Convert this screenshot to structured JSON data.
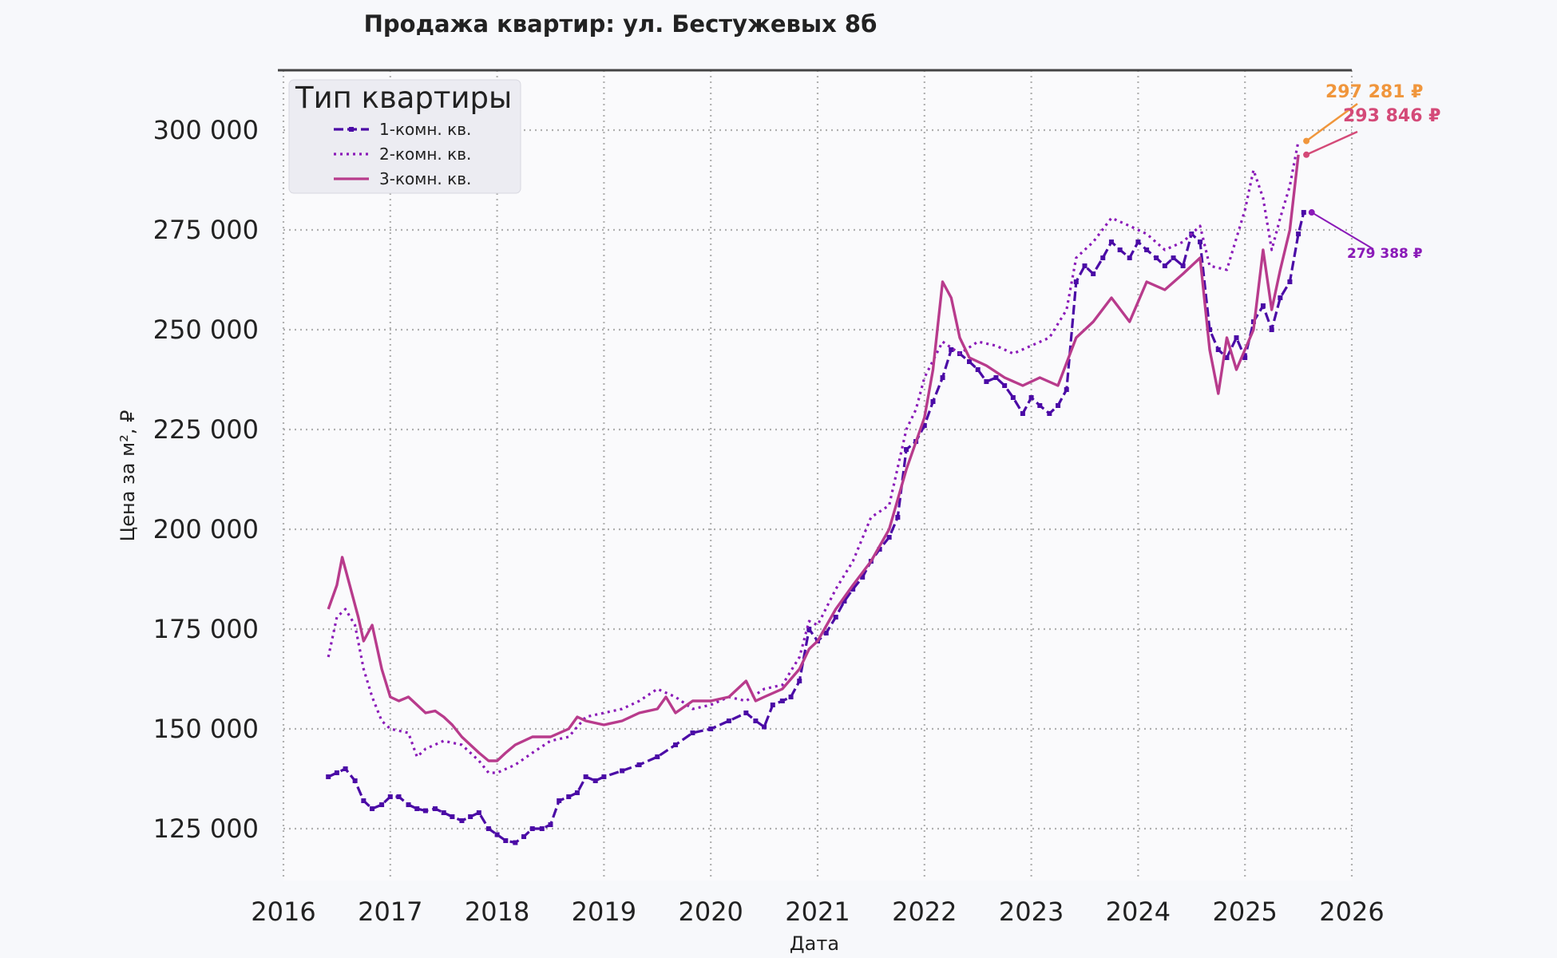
{
  "chart_data": {
    "type": "line",
    "title": "Продажа квартир: ул. Бестужевых 8б",
    "xlabel": "Дата",
    "ylabel": "Цена за м², ₽",
    "xlim": [
      2016,
      2026
    ],
    "ylim": [
      112000,
      315000
    ],
    "xticks": [
      2016,
      2017,
      2018,
      2019,
      2020,
      2021,
      2022,
      2023,
      2024,
      2025,
      2026
    ],
    "xtick_labels": [
      "2016",
      "2017",
      "2018",
      "2019",
      "2020",
      "2021",
      "2022",
      "2023",
      "2024",
      "2025",
      "2026"
    ],
    "yticks": [
      125000,
      150000,
      175000,
      200000,
      225000,
      250000,
      275000,
      300000
    ],
    "ytick_labels": [
      "125 000",
      "150 000",
      "175 000",
      "200 000",
      "225 000",
      "250 000",
      "275 000",
      "300 000"
    ],
    "grid": true,
    "legend": {
      "title": "Тип квартиры",
      "placement": "top-left"
    },
    "series": [
      {
        "name": "1-комн. кв.",
        "color": "#4b0aa6",
        "style": "dashed-marker",
        "points": [
          [
            2016.42,
            138000
          ],
          [
            2016.5,
            139000
          ],
          [
            2016.58,
            140000
          ],
          [
            2016.67,
            137000
          ],
          [
            2016.75,
            132000
          ],
          [
            2016.83,
            130000
          ],
          [
            2016.92,
            131000
          ],
          [
            2017.0,
            133000
          ],
          [
            2017.08,
            133000
          ],
          [
            2017.17,
            131000
          ],
          [
            2017.25,
            130000
          ],
          [
            2017.33,
            129500
          ],
          [
            2017.42,
            130000
          ],
          [
            2017.5,
            129000
          ],
          [
            2017.58,
            128000
          ],
          [
            2017.67,
            127000
          ],
          [
            2017.75,
            128000
          ],
          [
            2017.83,
            129000
          ],
          [
            2017.92,
            125000
          ],
          [
            2018.0,
            123500
          ],
          [
            2018.08,
            122000
          ],
          [
            2018.17,
            121500
          ],
          [
            2018.25,
            123000
          ],
          [
            2018.33,
            125000
          ],
          [
            2018.42,
            125000
          ],
          [
            2018.5,
            126000
          ],
          [
            2018.58,
            132000
          ],
          [
            2018.67,
            133000
          ],
          [
            2018.75,
            134000
          ],
          [
            2018.83,
            138000
          ],
          [
            2018.92,
            137000
          ],
          [
            2019.0,
            138000
          ],
          [
            2019.17,
            139500
          ],
          [
            2019.33,
            141000
          ],
          [
            2019.5,
            143000
          ],
          [
            2019.67,
            146000
          ],
          [
            2019.83,
            149000
          ],
          [
            2020.0,
            150000
          ],
          [
            2020.17,
            152000
          ],
          [
            2020.33,
            154000
          ],
          [
            2020.42,
            152000
          ],
          [
            2020.5,
            150500
          ],
          [
            2020.58,
            156000
          ],
          [
            2020.67,
            157000
          ],
          [
            2020.75,
            158000
          ],
          [
            2020.83,
            162000
          ],
          [
            2020.92,
            175000
          ],
          [
            2021.0,
            172000
          ],
          [
            2021.08,
            174000
          ],
          [
            2021.17,
            178000
          ],
          [
            2021.25,
            182000
          ],
          [
            2021.33,
            185000
          ],
          [
            2021.42,
            188000
          ],
          [
            2021.5,
            192000
          ],
          [
            2021.58,
            195000
          ],
          [
            2021.67,
            198000
          ],
          [
            2021.75,
            203000
          ],
          [
            2021.83,
            220000
          ],
          [
            2021.92,
            222000
          ],
          [
            2022.0,
            226000
          ],
          [
            2022.08,
            232000
          ],
          [
            2022.17,
            238000
          ],
          [
            2022.25,
            245000
          ],
          [
            2022.33,
            244000
          ],
          [
            2022.42,
            242000
          ],
          [
            2022.5,
            240000
          ],
          [
            2022.58,
            237000
          ],
          [
            2022.67,
            238000
          ],
          [
            2022.75,
            236000
          ],
          [
            2022.83,
            233000
          ],
          [
            2022.92,
            229000
          ],
          [
            2023.0,
            233000
          ],
          [
            2023.08,
            231000
          ],
          [
            2023.17,
            229000
          ],
          [
            2023.25,
            231000
          ],
          [
            2023.33,
            235000
          ],
          [
            2023.42,
            262000
          ],
          [
            2023.5,
            266000
          ],
          [
            2023.58,
            264000
          ],
          [
            2023.67,
            268000
          ],
          [
            2023.75,
            272000
          ],
          [
            2023.83,
            270000
          ],
          [
            2023.92,
            268000
          ],
          [
            2024.0,
            272000
          ],
          [
            2024.08,
            270000
          ],
          [
            2024.17,
            268000
          ],
          [
            2024.25,
            266000
          ],
          [
            2024.33,
            268000
          ],
          [
            2024.42,
            266000
          ],
          [
            2024.5,
            274000
          ],
          [
            2024.58,
            272000
          ],
          [
            2024.67,
            250000
          ],
          [
            2024.75,
            245000
          ],
          [
            2024.83,
            243000
          ],
          [
            2024.92,
            248000
          ],
          [
            2025.0,
            243000
          ],
          [
            2025.08,
            252000
          ],
          [
            2025.17,
            256000
          ],
          [
            2025.25,
            250000
          ],
          [
            2025.33,
            258000
          ],
          [
            2025.42,
            262000
          ],
          [
            2025.5,
            274000
          ],
          [
            2025.55,
            279388
          ]
        ]
      },
      {
        "name": "2-комн. кв.",
        "color": "#8a1ab8",
        "style": "dotted",
        "points": [
          [
            2016.42,
            168000
          ],
          [
            2016.5,
            178000
          ],
          [
            2016.58,
            180000
          ],
          [
            2016.67,
            176000
          ],
          [
            2016.75,
            165000
          ],
          [
            2016.83,
            158000
          ],
          [
            2016.92,
            152000
          ],
          [
            2017.0,
            150000
          ],
          [
            2017.17,
            149000
          ],
          [
            2017.25,
            143000
          ],
          [
            2017.33,
            145000
          ],
          [
            2017.5,
            147000
          ],
          [
            2017.67,
            146000
          ],
          [
            2017.83,
            142000
          ],
          [
            2017.92,
            139000
          ],
          [
            2018.0,
            139000
          ],
          [
            2018.17,
            141000
          ],
          [
            2018.33,
            144000
          ],
          [
            2018.5,
            147000
          ],
          [
            2018.67,
            148000
          ],
          [
            2018.83,
            153000
          ],
          [
            2019.0,
            154000
          ],
          [
            2019.17,
            155000
          ],
          [
            2019.33,
            157000
          ],
          [
            2019.5,
            160000
          ],
          [
            2019.67,
            158000
          ],
          [
            2019.83,
            155000
          ],
          [
            2020.0,
            156000
          ],
          [
            2020.17,
            158000
          ],
          [
            2020.33,
            157000
          ],
          [
            2020.5,
            160000
          ],
          [
            2020.67,
            161000
          ],
          [
            2020.83,
            168000
          ],
          [
            2020.92,
            177000
          ],
          [
            2021.0,
            176000
          ],
          [
            2021.17,
            185000
          ],
          [
            2021.33,
            192000
          ],
          [
            2021.5,
            203000
          ],
          [
            2021.67,
            206000
          ],
          [
            2021.83,
            225000
          ],
          [
            2021.92,
            230000
          ],
          [
            2022.0,
            238000
          ],
          [
            2022.17,
            247000
          ],
          [
            2022.33,
            244000
          ],
          [
            2022.5,
            247000
          ],
          [
            2022.67,
            246000
          ],
          [
            2022.83,
            244000
          ],
          [
            2023.0,
            246000
          ],
          [
            2023.17,
            248000
          ],
          [
            2023.33,
            255000
          ],
          [
            2023.42,
            268000
          ],
          [
            2023.58,
            272000
          ],
          [
            2023.75,
            278000
          ],
          [
            2023.92,
            276000
          ],
          [
            2024.08,
            274000
          ],
          [
            2024.25,
            270000
          ],
          [
            2024.42,
            272000
          ],
          [
            2024.58,
            276000
          ],
          [
            2024.67,
            266000
          ],
          [
            2024.83,
            265000
          ],
          [
            2025.0,
            280000
          ],
          [
            2025.08,
            290000
          ],
          [
            2025.17,
            283000
          ],
          [
            2025.25,
            270000
          ],
          [
            2025.33,
            278000
          ],
          [
            2025.42,
            286000
          ],
          [
            2025.5,
            297281
          ]
        ]
      },
      {
        "name": "3-комн. кв.",
        "color": "#b83b8c",
        "style": "solid",
        "points": [
          [
            2016.42,
            180000
          ],
          [
            2016.5,
            186000
          ],
          [
            2016.55,
            193000
          ],
          [
            2016.62,
            186000
          ],
          [
            2016.7,
            178000
          ],
          [
            2016.75,
            172000
          ],
          [
            2016.83,
            176000
          ],
          [
            2016.92,
            165000
          ],
          [
            2017.0,
            158000
          ],
          [
            2017.08,
            157000
          ],
          [
            2017.17,
            158000
          ],
          [
            2017.25,
            156000
          ],
          [
            2017.33,
            154000
          ],
          [
            2017.42,
            154500
          ],
          [
            2017.5,
            153000
          ],
          [
            2017.58,
            151000
          ],
          [
            2017.67,
            148000
          ],
          [
            2017.75,
            146000
          ],
          [
            2017.83,
            144000
          ],
          [
            2017.92,
            142000
          ],
          [
            2018.0,
            142000
          ],
          [
            2018.08,
            144000
          ],
          [
            2018.17,
            146000
          ],
          [
            2018.33,
            148000
          ],
          [
            2018.5,
            148000
          ],
          [
            2018.67,
            150000
          ],
          [
            2018.75,
            153000
          ],
          [
            2018.83,
            152000
          ],
          [
            2019.0,
            151000
          ],
          [
            2019.17,
            152000
          ],
          [
            2019.33,
            154000
          ],
          [
            2019.5,
            155000
          ],
          [
            2019.58,
            158000
          ],
          [
            2019.67,
            154000
          ],
          [
            2019.83,
            157000
          ],
          [
            2020.0,
            157000
          ],
          [
            2020.17,
            158000
          ],
          [
            2020.33,
            162000
          ],
          [
            2020.42,
            157000
          ],
          [
            2020.5,
            158000
          ],
          [
            2020.67,
            160000
          ],
          [
            2020.83,
            165000
          ],
          [
            2020.92,
            170000
          ],
          [
            2021.0,
            172000
          ],
          [
            2021.17,
            180000
          ],
          [
            2021.33,
            186000
          ],
          [
            2021.5,
            192000
          ],
          [
            2021.67,
            200000
          ],
          [
            2021.83,
            215000
          ],
          [
            2022.0,
            228000
          ],
          [
            2022.08,
            240000
          ],
          [
            2022.17,
            262000
          ],
          [
            2022.25,
            258000
          ],
          [
            2022.33,
            248000
          ],
          [
            2022.42,
            243000
          ],
          [
            2022.58,
            241000
          ],
          [
            2022.75,
            238000
          ],
          [
            2022.92,
            236000
          ],
          [
            2023.08,
            238000
          ],
          [
            2023.25,
            236000
          ],
          [
            2023.42,
            248000
          ],
          [
            2023.58,
            252000
          ],
          [
            2023.75,
            258000
          ],
          [
            2023.92,
            252000
          ],
          [
            2024.08,
            262000
          ],
          [
            2024.25,
            260000
          ],
          [
            2024.42,
            264000
          ],
          [
            2024.58,
            268000
          ],
          [
            2024.67,
            245000
          ],
          [
            2024.75,
            234000
          ],
          [
            2024.83,
            248000
          ],
          [
            2024.92,
            240000
          ],
          [
            2025.0,
            245000
          ],
          [
            2025.08,
            250000
          ],
          [
            2025.17,
            270000
          ],
          [
            2025.25,
            255000
          ],
          [
            2025.33,
            265000
          ],
          [
            2025.42,
            275000
          ],
          [
            2025.5,
            293846
          ]
        ]
      }
    ],
    "annotations": [
      {
        "text": "297 281 ₽",
        "color": "#f0963c",
        "x": 2025.5,
        "y": 297281,
        "size": "large"
      },
      {
        "text": "293 846 ₽",
        "color": "#d44a78",
        "x": 2025.5,
        "y": 293846,
        "size": "large"
      },
      {
        "text": "279 388 ₽",
        "color": "#8a1ab8",
        "x": 2025.55,
        "y": 279388,
        "size": "small"
      }
    ]
  }
}
